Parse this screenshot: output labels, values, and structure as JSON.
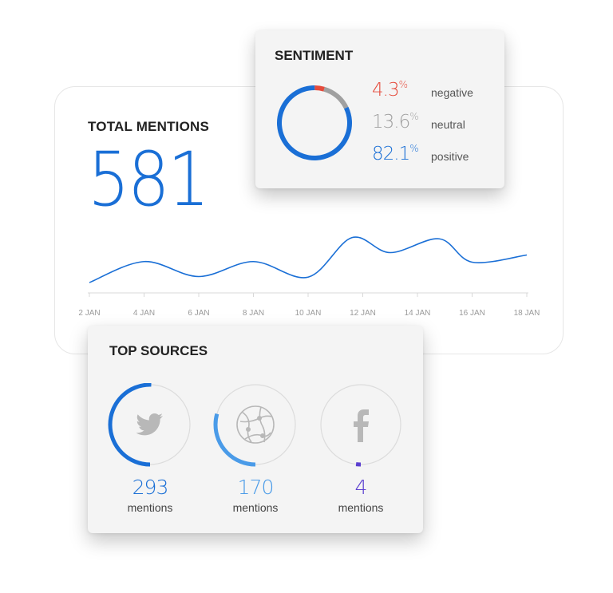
{
  "total": {
    "title": "TOTAL MENTIONS",
    "value": "581",
    "accent": "#1a6fd6"
  },
  "chart_data": {
    "type": "line",
    "title": "",
    "xlabel": "",
    "ylabel": "",
    "x_ticks": [
      "2 JAN",
      "4 JAN",
      "6 JAN",
      "8 JAN",
      "10 JAN",
      "12 JAN",
      "14 JAN",
      "16 JAN",
      "18 JAN"
    ],
    "x": [
      2,
      4,
      6,
      8,
      10,
      11.6,
      13,
      14.8,
      16,
      18
    ],
    "series": [
      {
        "values": [
          8,
          43,
          18,
          43,
          17,
          83,
          58,
          81,
          42,
          54
        ]
      }
    ],
    "ylim": [
      0,
      100
    ],
    "grid": false,
    "color": "#1a6fd6"
  },
  "sentiment": {
    "title": "SENTIMENT",
    "items": [
      {
        "value": "4.3",
        "unit": "%",
        "label": "negative",
        "pct": 4.3,
        "color": "#e54b3c"
      },
      {
        "value": "13.6",
        "unit": "%",
        "label": "neutral",
        "pct": 13.6,
        "color": "#a0a0a0"
      },
      {
        "value": "82.1",
        "unit": "%",
        "label": "positive",
        "pct": 82.1,
        "color": "#1a6fd6"
      }
    ]
  },
  "sources": {
    "title": "TOP SOURCES",
    "items": [
      {
        "icon": "twitter-icon",
        "count": "293",
        "label": "mentions",
        "share": 0.504,
        "color": "#1a6fd6"
      },
      {
        "icon": "globe-icon",
        "count": "170",
        "label": "mentions",
        "share": 0.293,
        "color": "#4a9be8"
      },
      {
        "icon": "facebook-icon",
        "count": "4",
        "label": "mentions",
        "share": 0.007,
        "color": "#5b3fd0"
      }
    ]
  }
}
